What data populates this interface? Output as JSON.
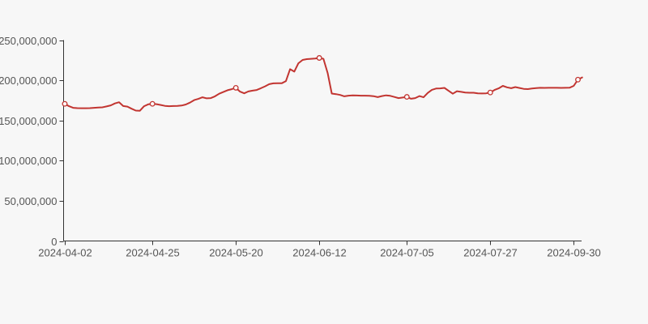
{
  "page": {
    "background_color": "#f7f7f7"
  },
  "chart_data": {
    "type": "line",
    "title": "",
    "xlabel": "",
    "ylabel": "",
    "legend": "none",
    "grid": false,
    "background": "#f7f7f7",
    "axis_color": "#333333",
    "label_color": "#555555",
    "line_color": "#c23531",
    "marker_fill": "#fcfcfc",
    "ylim": [
      0,
      250000000
    ],
    "y_tick_values": [
      0,
      50000000,
      100000000,
      150000000,
      200000000,
      250000000
    ],
    "y_tick_labels": [
      "0",
      "50,000,000",
      "100,000,000",
      "150,000,000",
      "200,000,000",
      "250,000,000"
    ],
    "x_tick_labels": [
      "2024-04-02",
      "2024-04-25",
      "2024-05-20",
      "2024-06-12",
      "2024-07-05",
      "2024-07-27",
      "2024-09-30"
    ],
    "x_tick_indices": [
      0,
      21,
      41,
      61,
      82,
      102,
      122
    ],
    "marker_indices": [
      0,
      21,
      41,
      61,
      82,
      102,
      123
    ],
    "marked_point_values": [
      170700000,
      170700000,
      190600000,
      227800000,
      179300000,
      184800000,
      200800000
    ],
    "values": [
      170700000,
      167700000,
      165700000,
      165300000,
      165200000,
      165200000,
      165300000,
      165700000,
      166100000,
      166300000,
      167400000,
      168700000,
      171200000,
      172700000,
      167900000,
      167200000,
      164600000,
      162300000,
      162100000,
      167700000,
      170100000,
      170700000,
      170300000,
      169300000,
      168100000,
      167700000,
      167900000,
      168000000,
      168500000,
      169900000,
      172200000,
      175300000,
      176800000,
      178800000,
      177500000,
      177800000,
      180000000,
      183300000,
      185400000,
      187600000,
      188900000,
      190600000,
      185900000,
      183800000,
      186100000,
      187100000,
      187900000,
      190100000,
      192400000,
      195200000,
      196200000,
      196300000,
      196300000,
      199000000,
      213800000,
      210800000,
      221200000,
      225300000,
      226300000,
      226700000,
      227000000,
      227800000,
      226700000,
      209100000,
      183500000,
      182800000,
      181800000,
      180000000,
      180800000,
      181200000,
      181000000,
      180800000,
      180800000,
      180600000,
      180200000,
      179000000,
      180300000,
      181200000,
      180600000,
      179200000,
      177800000,
      178500000,
      179300000,
      177000000,
      177800000,
      180300000,
      178800000,
      184300000,
      188100000,
      189700000,
      189900000,
      190500000,
      186900000,
      183300000,
      186400000,
      185600000,
      184800000,
      184500000,
      184500000,
      183800000,
      183600000,
      183800000,
      184800000,
      187900000,
      189900000,
      193000000,
      191200000,
      190100000,
      191500000,
      190400000,
      189300000,
      189000000,
      189800000,
      190300000,
      190600000,
      190500000,
      190600000,
      190600000,
      190600000,
      190500000,
      190600000,
      190700000,
      193000000,
      200800000,
      203500000
    ]
  }
}
